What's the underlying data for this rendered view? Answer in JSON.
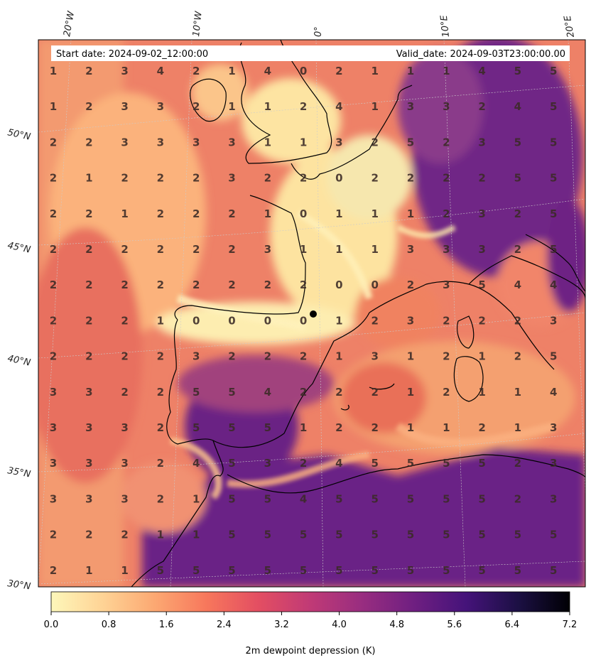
{
  "header": {
    "start_date": "Start date: 2024-09-02_12:00:00",
    "valid_date": "Valid_date: 2024-09-03T23:00:00.00"
  },
  "axes": {
    "lat_labels": [
      "50°N",
      "45°N",
      "40°N",
      "35°N",
      "30°N"
    ],
    "lon_labels": [
      "20°W",
      "10°W",
      "0°",
      "10°E",
      "20°E"
    ]
  },
  "colorbar": {
    "label": "2m dewpoint depression (K)",
    "ticks": [
      "0.0",
      "0.8",
      "1.6",
      "2.4",
      "3.2",
      "4.0",
      "4.8",
      "5.6",
      "6.4",
      "7.2"
    ],
    "colormap": "magma_r",
    "range": [
      0.0,
      7.2
    ]
  },
  "colors": {
    "low": "#fdf5b8",
    "mid_low": "#fcb076",
    "mid": "#e75a5a",
    "high": "#6c2282",
    "max": "#000004",
    "coastline": "#000000"
  },
  "grid_values": [
    [
      1,
      2,
      3,
      4,
      2,
      1,
      4,
      0,
      2,
      1,
      1,
      1,
      4,
      5,
      5
    ],
    [
      1,
      2,
      3,
      3,
      2,
      1,
      1,
      2,
      4,
      1,
      3,
      3,
      2,
      4,
      5
    ],
    [
      2,
      2,
      3,
      3,
      3,
      3,
      1,
      1,
      3,
      2,
      5,
      2,
      3,
      5,
      5
    ],
    [
      2,
      1,
      2,
      2,
      2,
      3,
      2,
      2,
      0,
      2,
      2,
      2,
      2,
      5,
      5
    ],
    [
      2,
      2,
      1,
      2,
      2,
      2,
      1,
      0,
      1,
      1,
      1,
      2,
      3,
      2,
      5
    ],
    [
      2,
      2,
      2,
      2,
      2,
      2,
      3,
      1,
      1,
      1,
      3,
      3,
      3,
      2,
      5
    ],
    [
      2,
      2,
      2,
      2,
      2,
      2,
      2,
      2,
      0,
      0,
      2,
      3,
      5,
      4,
      4
    ],
    [
      2,
      2,
      2,
      1,
      0,
      0,
      0,
      0,
      1,
      2,
      3,
      2,
      2,
      2,
      3
    ],
    [
      2,
      2,
      2,
      2,
      3,
      2,
      2,
      2,
      1,
      3,
      1,
      2,
      1,
      2,
      5
    ],
    [
      3,
      3,
      2,
      2,
      5,
      5,
      4,
      2,
      2,
      2,
      1,
      2,
      1,
      1,
      4
    ],
    [
      3,
      3,
      3,
      2,
      5,
      5,
      5,
      1,
      2,
      2,
      1,
      1,
      2,
      1,
      3
    ],
    [
      3,
      3,
      3,
      2,
      4,
      5,
      3,
      2,
      4,
      5,
      5,
      5,
      5,
      2,
      3
    ],
    [
      3,
      3,
      3,
      2,
      1,
      5,
      5,
      4,
      5,
      5,
      5,
      5,
      5,
      2,
      3
    ],
    [
      2,
      2,
      2,
      1,
      1,
      5,
      5,
      5,
      5,
      5,
      5,
      5,
      5,
      5,
      5
    ],
    [
      2,
      1,
      1,
      5,
      5,
      5,
      5,
      5,
      5,
      5,
      5,
      5,
      5,
      5,
      5
    ]
  ]
}
